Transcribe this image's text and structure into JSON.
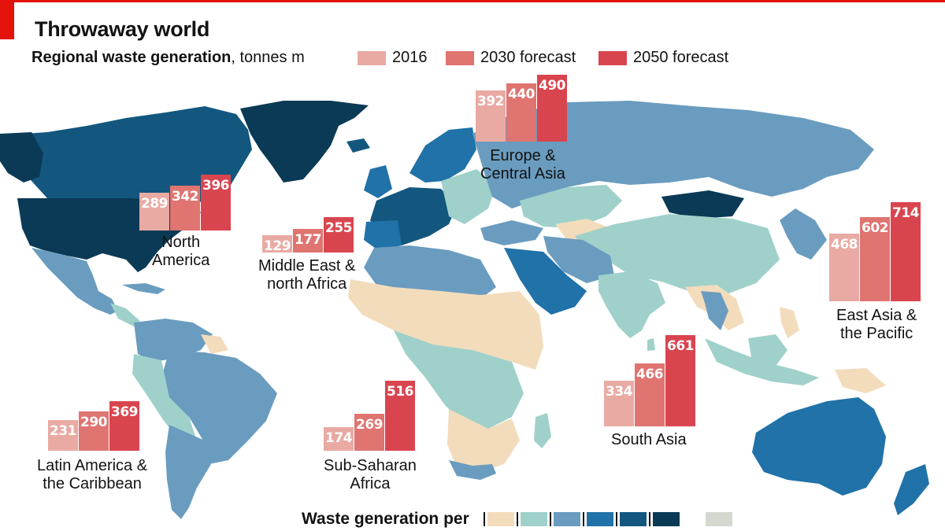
{
  "header": {
    "title": "Throwaway world",
    "subtitle_bold": "Regional waste generation",
    "subtitle_rest": ", tonnes m"
  },
  "legend": [
    {
      "label": "2016",
      "color": "#e9aaa3"
    },
    {
      "label": "2030 forecast",
      "color": "#df7471"
    },
    {
      "label": "2050 forecast",
      "color": "#d9454f"
    }
  ],
  "regions": [
    {
      "name_lines": [
        "North",
        "America"
      ],
      "values": [
        "289",
        "342",
        "396"
      ]
    },
    {
      "name_lines": [
        "Middle East &",
        "north Africa"
      ],
      "values": [
        "129",
        "177",
        "255"
      ]
    },
    {
      "name_lines": [
        "Europe &",
        "Central Asia"
      ],
      "values": [
        "392",
        "440",
        "490"
      ]
    },
    {
      "name_lines": [
        "East Asia &",
        "the Pacific"
      ],
      "values": [
        "468",
        "602",
        "714"
      ]
    },
    {
      "name_lines": [
        "South Asia"
      ],
      "values": [
        "334",
        "466",
        "661"
      ]
    },
    {
      "name_lines": [
        "Sub-Saharan",
        "Africa"
      ],
      "values": [
        "174",
        "269",
        "516"
      ]
    },
    {
      "name_lines": [
        "Latin America &",
        "the Caribbean"
      ],
      "values": [
        "231",
        "290",
        "369"
      ]
    }
  ],
  "chart_data": {
    "type": "bar",
    "title": "Regional waste generation",
    "categories": [
      "North America",
      "Middle East & north Africa",
      "Europe & Central Asia",
      "East Asia & the Pacific",
      "South Asia",
      "Sub-Saharan Africa",
      "Latin America & the Caribbean"
    ],
    "series": [
      {
        "name": "2016",
        "values": [
          289,
          129,
          392,
          468,
          334,
          174,
          231
        ]
      },
      {
        "name": "2030 forecast",
        "values": [
          342,
          177,
          440,
          602,
          466,
          269,
          290
        ]
      },
      {
        "name": "2050 forecast",
        "values": [
          396,
          255,
          490,
          714,
          661,
          516,
          369
        ]
      }
    ],
    "ylabel": "tonnes m"
  },
  "bottom_legend": {
    "title": "Waste generation per",
    "scale_colors": [
      "#f2dcbc",
      "#9fd1ca",
      "#6a9cbf",
      "#2072a8",
      "#13577f",
      "#0a3a55"
    ],
    "no_data_color": "#d4d8cf"
  },
  "map_colors": {
    "sea": "#ffffff",
    "light_sand": "#f2dcbc",
    "teal": "#9fd1ca",
    "steel": "#6a9cbf",
    "blue": "#2072a8",
    "dark_blue": "#13577f",
    "navy": "#0a3a55"
  }
}
